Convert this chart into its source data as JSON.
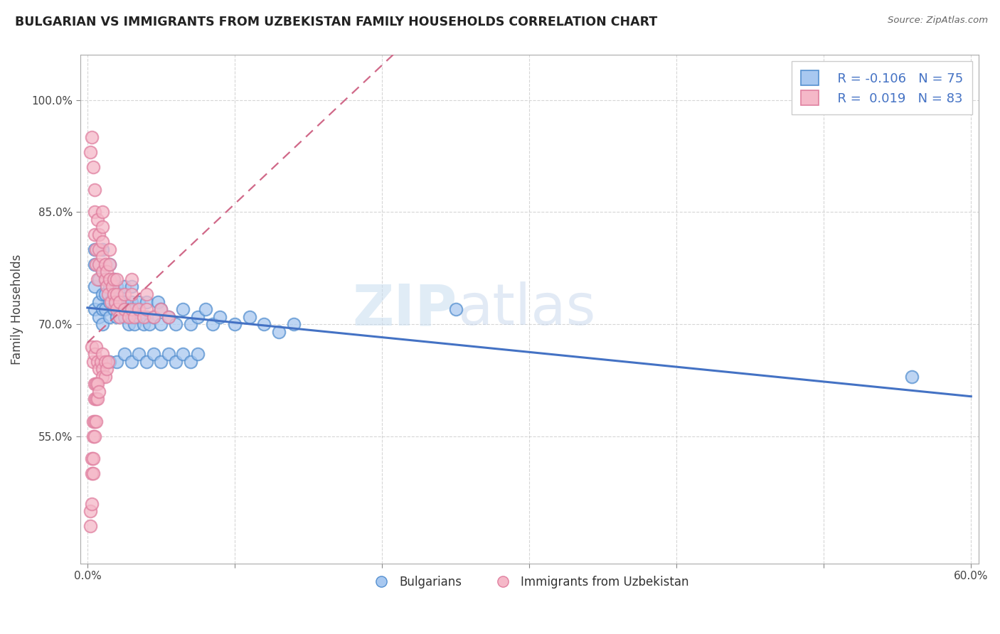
{
  "title": "BULGARIAN VS IMMIGRANTS FROM UZBEKISTAN FAMILY HOUSEHOLDS CORRELATION CHART",
  "source": "Source: ZipAtlas.com",
  "ylabel": "Family Households",
  "xlim": [
    -0.005,
    0.605
  ],
  "ylim": [
    0.38,
    1.06
  ],
  "x_ticks": [
    0.0,
    0.1,
    0.2,
    0.3,
    0.4,
    0.5,
    0.6
  ],
  "x_tick_labels": [
    "0.0%",
    "",
    "",
    "",
    "",
    "",
    "60.0%"
  ],
  "y_ticks": [
    0.55,
    0.7,
    0.85,
    1.0
  ],
  "y_tick_labels": [
    "55.0%",
    "70.0%",
    "85.0%",
    "100.0%"
  ],
  "R_blue": -0.106,
  "N_blue": 75,
  "R_pink": 0.019,
  "N_pink": 83,
  "legend_labels": [
    "Bulgarians",
    "Immigrants from Uzbekistan"
  ],
  "blue_color": "#a8c8f0",
  "pink_color": "#f5b8c8",
  "blue_edge_color": "#5590d0",
  "pink_edge_color": "#e080a0",
  "blue_line_color": "#4472c4",
  "pink_line_color": "#d06888",
  "watermark_zip": "ZIP",
  "watermark_atlas": "atlas",
  "blue_scatter_x": [
    0.005,
    0.005,
    0.005,
    0.005,
    0.008,
    0.008,
    0.008,
    0.01,
    0.01,
    0.01,
    0.01,
    0.01,
    0.012,
    0.012,
    0.012,
    0.015,
    0.015,
    0.015,
    0.015,
    0.018,
    0.018,
    0.018,
    0.02,
    0.02,
    0.02,
    0.022,
    0.022,
    0.025,
    0.025,
    0.025,
    0.028,
    0.028,
    0.03,
    0.03,
    0.03,
    0.032,
    0.032,
    0.035,
    0.035,
    0.038,
    0.04,
    0.04,
    0.042,
    0.045,
    0.048,
    0.05,
    0.05,
    0.055,
    0.06,
    0.065,
    0.07,
    0.075,
    0.08,
    0.085,
    0.09,
    0.1,
    0.11,
    0.12,
    0.13,
    0.14,
    0.015,
    0.02,
    0.025,
    0.03,
    0.035,
    0.04,
    0.045,
    0.05,
    0.055,
    0.06,
    0.065,
    0.07,
    0.075,
    0.56,
    0.25
  ],
  "blue_scatter_y": [
    0.72,
    0.75,
    0.78,
    0.8,
    0.71,
    0.73,
    0.76,
    0.7,
    0.72,
    0.74,
    0.77,
    0.8,
    0.72,
    0.74,
    0.76,
    0.71,
    0.73,
    0.75,
    0.78,
    0.72,
    0.74,
    0.76,
    0.71,
    0.73,
    0.75,
    0.72,
    0.74,
    0.71,
    0.73,
    0.75,
    0.7,
    0.72,
    0.71,
    0.73,
    0.75,
    0.7,
    0.72,
    0.71,
    0.73,
    0.7,
    0.71,
    0.73,
    0.7,
    0.71,
    0.73,
    0.7,
    0.72,
    0.71,
    0.7,
    0.72,
    0.7,
    0.71,
    0.72,
    0.7,
    0.71,
    0.7,
    0.71,
    0.7,
    0.69,
    0.7,
    0.65,
    0.65,
    0.66,
    0.65,
    0.66,
    0.65,
    0.66,
    0.65,
    0.66,
    0.65,
    0.66,
    0.65,
    0.66,
    0.63,
    0.72
  ],
  "pink_scatter_x": [
    0.002,
    0.003,
    0.004,
    0.005,
    0.005,
    0.005,
    0.006,
    0.006,
    0.007,
    0.007,
    0.008,
    0.008,
    0.008,
    0.01,
    0.01,
    0.01,
    0.01,
    0.01,
    0.012,
    0.012,
    0.013,
    0.013,
    0.014,
    0.015,
    0.015,
    0.015,
    0.016,
    0.017,
    0.018,
    0.018,
    0.019,
    0.02,
    0.02,
    0.02,
    0.022,
    0.022,
    0.025,
    0.025,
    0.028,
    0.03,
    0.03,
    0.03,
    0.032,
    0.035,
    0.038,
    0.04,
    0.04,
    0.045,
    0.05,
    0.055,
    0.003,
    0.004,
    0.005,
    0.006,
    0.007,
    0.008,
    0.009,
    0.01,
    0.01,
    0.01,
    0.012,
    0.012,
    0.013,
    0.014,
    0.005,
    0.005,
    0.006,
    0.006,
    0.007,
    0.007,
    0.008,
    0.004,
    0.004,
    0.005,
    0.005,
    0.006,
    0.003,
    0.003,
    0.004,
    0.004,
    0.002,
    0.002,
    0.003
  ],
  "pink_scatter_y": [
    0.93,
    0.95,
    0.91,
    0.88,
    0.85,
    0.82,
    0.78,
    0.8,
    0.76,
    0.84,
    0.78,
    0.8,
    0.82,
    0.77,
    0.79,
    0.81,
    0.83,
    0.85,
    0.76,
    0.78,
    0.75,
    0.77,
    0.74,
    0.76,
    0.78,
    0.8,
    0.73,
    0.75,
    0.74,
    0.76,
    0.73,
    0.72,
    0.74,
    0.76,
    0.71,
    0.73,
    0.72,
    0.74,
    0.71,
    0.72,
    0.74,
    0.76,
    0.71,
    0.72,
    0.71,
    0.72,
    0.74,
    0.71,
    0.72,
    0.71,
    0.67,
    0.65,
    0.66,
    0.67,
    0.65,
    0.64,
    0.65,
    0.66,
    0.64,
    0.63,
    0.65,
    0.63,
    0.64,
    0.65,
    0.6,
    0.62,
    0.6,
    0.62,
    0.6,
    0.62,
    0.61,
    0.57,
    0.55,
    0.57,
    0.55,
    0.57,
    0.52,
    0.5,
    0.52,
    0.5,
    0.45,
    0.43,
    0.46
  ]
}
